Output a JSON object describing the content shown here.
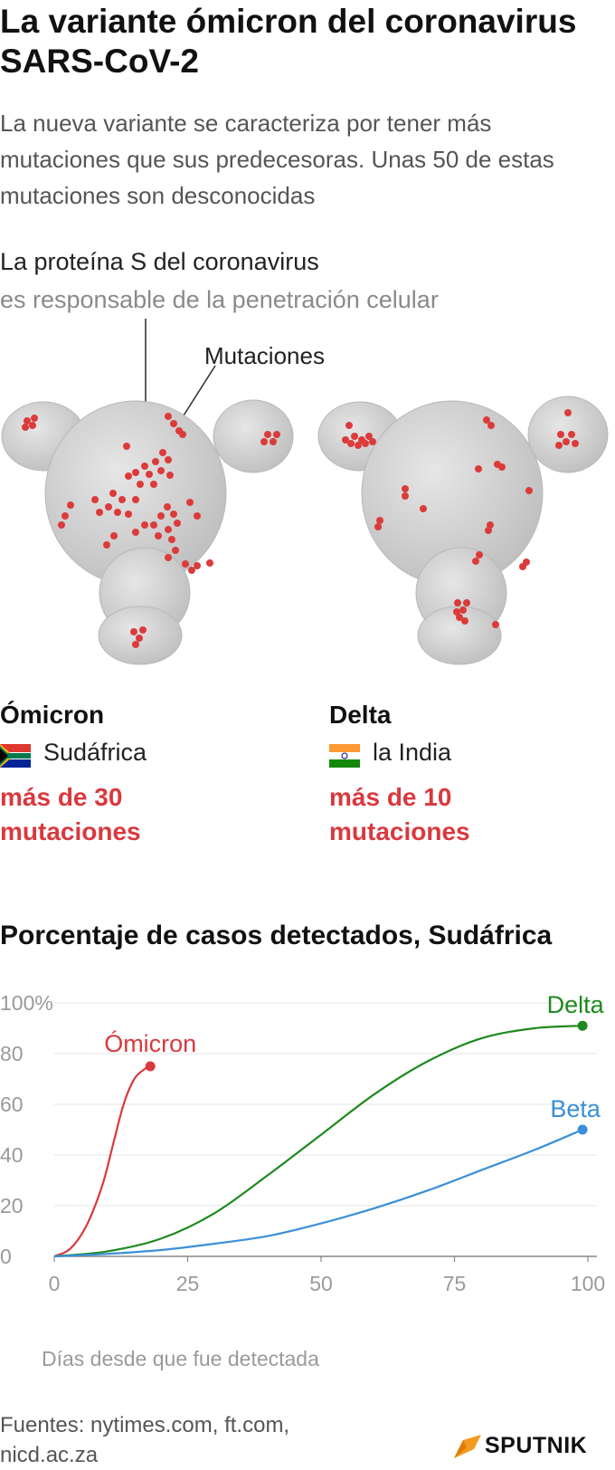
{
  "header": {
    "title": "La variante ómicron del coronavirus SARS-CoV-2",
    "subtitle": "La nueva variante se caracteriza por tener más mutaciones que sus predecesoras. Unas 50 de estas mutaciones son desconocidas"
  },
  "protein": {
    "line1": "La proteína S del coronavirus",
    "line2": "es responsable de la penetración celular",
    "mutations_label": "Mutaciones"
  },
  "variants": [
    {
      "name": "Ómicron",
      "country": "Sudáfrica",
      "flag": "south-africa-flag",
      "mutations": "más de 30 mutaciones"
    },
    {
      "name": "Delta",
      "country": "la India",
      "flag": "india-flag",
      "mutations": "más de 10 mutaciones"
    }
  ],
  "colors": {
    "accent_red": "#d9393e",
    "omicron": "#d9393e",
    "delta": "#1e8a1e",
    "beta": "#3a8fd9",
    "protein_gray": "#d0d0d0"
  },
  "chart_data": {
    "type": "line",
    "title": "Porcentaje de casos detectados, Sudáfrica",
    "xlabel": "Días desde que fue detectada",
    "ylabel": "",
    "xlim": [
      0,
      100
    ],
    "ylim": [
      0,
      100
    ],
    "x_ticks": [
      "0",
      "25",
      "50",
      "75",
      "100"
    ],
    "y_ticks": [
      "0",
      "20",
      "40",
      "60",
      "80",
      "100%"
    ],
    "grid": "horizontal",
    "series": [
      {
        "name": "Ómicron",
        "color": "#d9393e",
        "x": [
          0,
          3,
          6,
          9,
          11,
          13,
          15,
          17,
          18
        ],
        "y": [
          0,
          3,
          12,
          28,
          44,
          60,
          70,
          74,
          75
        ]
      },
      {
        "name": "Delta",
        "color": "#1e8a1e",
        "x": [
          0,
          10,
          20,
          30,
          40,
          50,
          60,
          70,
          80,
          90,
          99
        ],
        "y": [
          0,
          2,
          7,
          17,
          32,
          48,
          64,
          77,
          86,
          90,
          91
        ]
      },
      {
        "name": "Beta",
        "color": "#3a8fd9",
        "x": [
          0,
          10,
          20,
          30,
          40,
          50,
          60,
          70,
          80,
          90,
          99
        ],
        "y": [
          0,
          1,
          2.5,
          5,
          8,
          13,
          19,
          26,
          34,
          42,
          50
        ]
      }
    ]
  },
  "footer": {
    "sources": "Fuentes: nytimes.com, ft.com, nicd.ac.za",
    "brand": "SPUTNIK"
  }
}
